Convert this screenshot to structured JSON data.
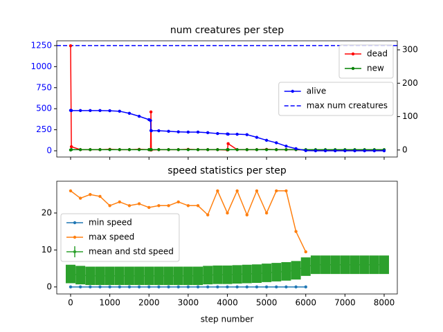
{
  "chart_data": [
    {
      "type": "line",
      "title": "num creatures per step",
      "xlim": [
        -353,
        8336
      ],
      "xticks": [
        0,
        1000,
        2000,
        3000,
        4000,
        5000,
        6000,
        7000,
        8000
      ],
      "xtick_labels": false,
      "ylim": [
        -74,
        1307
      ],
      "yticks": [
        0,
        250,
        500,
        750,
        1000,
        1250
      ],
      "ytick_color": "#0000ff",
      "y2lim": [
        -21,
        327
      ],
      "y2ticks": [
        0,
        100,
        200,
        300
      ],
      "legend": "center right",
      "legend2": "upper right",
      "x": [
        0,
        20,
        250,
        500,
        750,
        1000,
        1250,
        1500,
        1750,
        2000,
        2040,
        2050,
        2060,
        2250,
        2500,
        2750,
        3000,
        3250,
        3500,
        3750,
        4000,
        4020,
        4250,
        4500,
        4750,
        5000,
        5250,
        5500,
        5750,
        6000,
        6250,
        6500,
        6750,
        7000,
        7250,
        7500,
        7750,
        8000
      ],
      "series": [
        {
          "name": "dead",
          "color": "#ff0000",
          "axis": "y2",
          "values": [
            312,
            10,
            1,
            1,
            1,
            2,
            1,
            1,
            2,
            1,
            0,
            114,
            0,
            1,
            1,
            1,
            2,
            1,
            1,
            1,
            0,
            19,
            1,
            1,
            1,
            2,
            1,
            1,
            1,
            0,
            0,
            0,
            0,
            0,
            0,
            0,
            0,
            0
          ]
        },
        {
          "name": "new",
          "color": "#008000",
          "axis": "y2",
          "values": [
            0,
            1,
            1,
            1,
            1,
            1,
            1,
            1,
            1,
            1,
            1,
            1,
            1,
            1,
            1,
            1,
            1,
            1,
            1,
            1,
            1,
            1,
            1,
            1,
            1,
            1,
            1,
            1,
            1,
            1,
            1,
            1,
            1,
            1,
            1,
            1,
            1,
            1
          ]
        },
        {
          "name": "alive",
          "color": "#0000ff",
          "axis": "y",
          "values": [
            480,
            478,
            478,
            478,
            478,
            476,
            470,
            445,
            410,
            370,
            360,
            240,
            238,
            238,
            232,
            225,
            222,
            222,
            215,
            205,
            200,
            198,
            197,
            192,
            160,
            125,
            95,
            55,
            25,
            2,
            0,
            0,
            0,
            0,
            0,
            0,
            0,
            0
          ]
        }
      ],
      "hlines": [
        {
          "name": "max num creatures",
          "y": 1250,
          "color": "#0000ff",
          "style": "dashed"
        }
      ]
    },
    {
      "type": "line",
      "title": "speed statistics per step",
      "xlabel": "step number",
      "xlim": [
        -353,
        8336
      ],
      "xticks": [
        0,
        1000,
        2000,
        3000,
        4000,
        5000,
        6000,
        7000,
        8000
      ],
      "xtick_labels": true,
      "ylim": [
        -1.9,
        28.6
      ],
      "yticks": [
        0,
        10,
        20
      ],
      "legend": "center left",
      "x": [
        0,
        250,
        500,
        750,
        1000,
        1250,
        1500,
        1750,
        2000,
        2250,
        2500,
        2750,
        3000,
        3250,
        3500,
        3750,
        4000,
        4250,
        4500,
        4750,
        5000,
        5250,
        5500,
        5750,
        6000,
        6250,
        6500,
        6750,
        7000,
        7250,
        7500,
        7750,
        8000
      ],
      "series": [
        {
          "name": "min speed",
          "color": "#1f77b4",
          "values": [
            0,
            0,
            0,
            0,
            0,
            0,
            0,
            0,
            0,
            0,
            0,
            0,
            0,
            0,
            0,
            0,
            0,
            0,
            0,
            0,
            0,
            0,
            0,
            0,
            0,
            null,
            null,
            null,
            null,
            null,
            null,
            null,
            null
          ]
        },
        {
          "name": "max speed",
          "color": "#ff7f0e",
          "values": [
            26,
            24,
            25,
            24.5,
            22,
            23,
            22,
            22.5,
            21.5,
            22,
            22,
            23,
            22,
            22,
            19.5,
            26,
            20,
            26,
            19.5,
            26,
            20,
            26,
            26,
            15,
            9.5,
            null,
            null,
            null,
            null,
            null,
            null,
            null,
            null
          ]
        },
        {
          "name": "mean and std speed",
          "color": "#2ca02c",
          "values": [
            3.5,
            3.2,
            3,
            3,
            3,
            3,
            3,
            3,
            3,
            3,
            3,
            3,
            3,
            3,
            3.2,
            3.3,
            3.3,
            3.4,
            3.5,
            3.6,
            3.8,
            4,
            4.2,
            4.5,
            5.5,
            6,
            6,
            6,
            6,
            6,
            6,
            6,
            6
          ],
          "errors": [
            2.5,
            2.5,
            2.5,
            2.5,
            2.5,
            2.5,
            2.5,
            2.5,
            2.5,
            2.5,
            2.5,
            2.5,
            2.5,
            2.5,
            2.5,
            2.5,
            2.5,
            2.5,
            2.5,
            2.5,
            2.5,
            2.5,
            2.5,
            2.5,
            2.5,
            2.5,
            2.5,
            2.5,
            2.5,
            2.5,
            2.5,
            2.5,
            2.5
          ]
        }
      ]
    }
  ]
}
